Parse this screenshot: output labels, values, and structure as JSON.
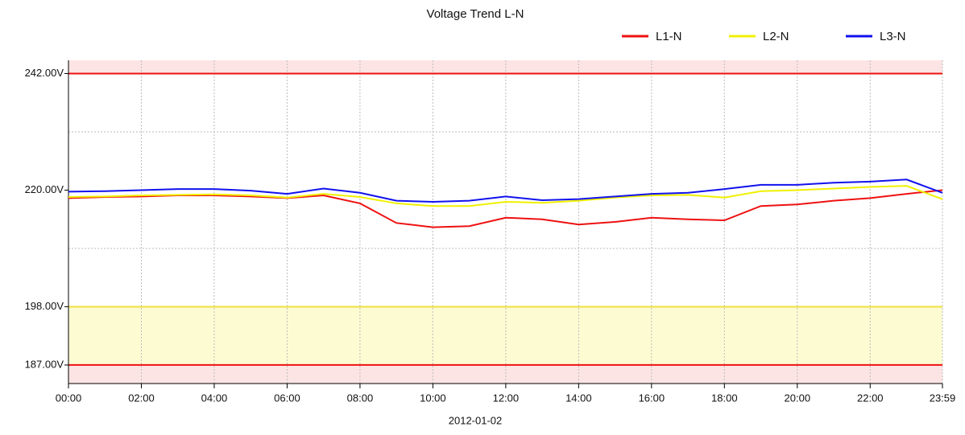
{
  "chart_data": {
    "type": "line",
    "title": "Voltage Trend L-N",
    "xlabel": "2012-01-02",
    "x": [
      0,
      60,
      120,
      180,
      240,
      300,
      360,
      420,
      480,
      540,
      600,
      660,
      720,
      780,
      840,
      900,
      960,
      1020,
      1080,
      1140,
      1200,
      1260,
      1320,
      1380,
      1439
    ],
    "series": [
      {
        "name": "L1-N",
        "color": "#ee1111",
        "values": [
          218.5,
          218.7,
          218.8,
          219,
          219,
          218.8,
          218.5,
          219,
          217.5,
          213.8,
          213,
          213.2,
          214.8,
          214.5,
          213.5,
          214,
          214.8,
          214.5,
          214.3,
          217,
          217.3,
          218,
          218.5,
          219.3,
          220
        ]
      },
      {
        "name": "L2-N",
        "color": "#f0f000",
        "values": [
          218.7,
          218.8,
          219,
          219.1,
          219.2,
          219,
          218.6,
          219.3,
          218.7,
          217.5,
          217,
          217,
          217.8,
          217.6,
          218,
          218.6,
          219,
          219.1,
          218.6,
          219.8,
          220,
          220.3,
          220.6,
          220.8,
          218.3
        ]
      },
      {
        "name": "L3-N",
        "color": "#1111ee",
        "values": [
          219.7,
          219.8,
          220,
          220.2,
          220.2,
          219.9,
          219.3,
          220.3,
          219.5,
          218,
          217.8,
          218,
          218.8,
          218.1,
          218.3,
          218.8,
          219.3,
          219.5,
          220.2,
          221,
          221,
          221.4,
          221.6,
          222,
          219.5
        ]
      }
    ],
    "xlim": [
      0,
      1439
    ],
    "xticks": [
      {
        "value": 0,
        "label": "00:00"
      },
      {
        "value": 120,
        "label": "02:00"
      },
      {
        "value": 240,
        "label": "04:00"
      },
      {
        "value": 360,
        "label": "06:00"
      },
      {
        "value": 480,
        "label": "08:00"
      },
      {
        "value": 600,
        "label": "10:00"
      },
      {
        "value": 720,
        "label": "12:00"
      },
      {
        "value": 840,
        "label": "14:00"
      },
      {
        "value": 960,
        "label": "16:00"
      },
      {
        "value": 1080,
        "label": "18:00"
      },
      {
        "value": 1200,
        "label": "20:00"
      },
      {
        "value": 1320,
        "label": "22:00"
      },
      {
        "value": 1439,
        "label": "23:59"
      }
    ],
    "ylim": [
      183.5,
      244.5
    ],
    "yticks": [
      {
        "value": 187,
        "label": "187.00V"
      },
      {
        "value": 198,
        "label": "198.00V"
      },
      {
        "value": 220,
        "label": "220.00V"
      },
      {
        "value": 242,
        "label": "242.00V"
      }
    ],
    "minor_yticks": [
      209,
      231
    ],
    "grid": true,
    "thresholds": [
      {
        "value": 242,
        "color": "#ee1111"
      },
      {
        "value": 198,
        "color": "#f0e040"
      },
      {
        "value": 187,
        "color": "#ee1111"
      }
    ],
    "bands": [
      {
        "from": 242,
        "to": 244.5,
        "color": "#fde4e4"
      },
      {
        "from": 187,
        "to": 198,
        "color": "#fdfbd2"
      },
      {
        "from": 183.5,
        "to": 187,
        "color": "#fde4e4"
      }
    ],
    "legend": "top-right"
  }
}
